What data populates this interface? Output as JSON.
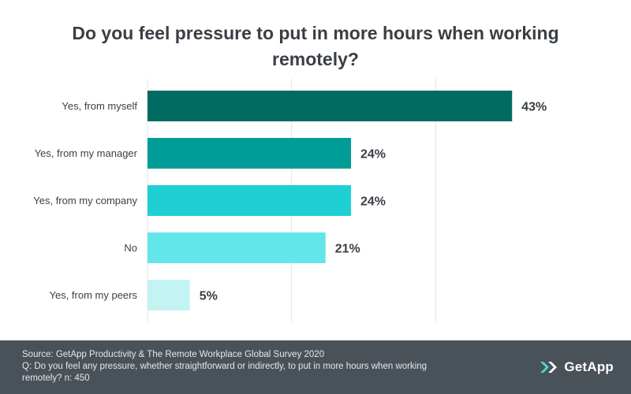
{
  "title": "Do you feel pressure to put in more hours when working remotely?",
  "chart_data": {
    "type": "bar",
    "orientation": "horizontal",
    "categories": [
      "Yes, from myself",
      "Yes, from my manager",
      "Yes, from my company",
      "No",
      "Yes, from my peers"
    ],
    "values": [
      43,
      24,
      24,
      21,
      5
    ],
    "value_labels": [
      "43%",
      "24%",
      "24%",
      "21%",
      "5%"
    ],
    "colors": [
      "#006b63",
      "#009d98",
      "#1ed0d3",
      "#62e6ea",
      "#c4f3f3"
    ],
    "xlim": [
      0,
      48
    ],
    "gridlines": [
      0,
      17,
      34
    ],
    "grid": true,
    "title": "Do you feel pressure to put in more hours when working remotely?"
  },
  "footer": {
    "source": "Source: GetApp Productivity & The Remote Workplace Global Survey 2020",
    "question": "Q: Do you feel any pressure, whether straightforward or indirectly, to put in more hours when working remotely?  n: 450"
  },
  "logo": {
    "text": "GetApp",
    "icon": "getapp-chevrons-icon",
    "accent": "#4ad8d6"
  }
}
